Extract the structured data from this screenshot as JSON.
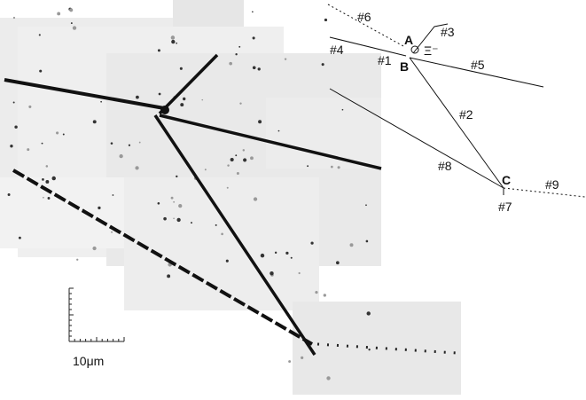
{
  "diagram": {
    "labels": [
      "#6",
      "#3",
      "A",
      "Ξ⁻",
      "#4",
      "#1",
      "B",
      "#5",
      "#2",
      "#8",
      "C",
      "#9",
      "#7"
    ]
  },
  "scale_bar": {
    "label": "10μm"
  }
}
